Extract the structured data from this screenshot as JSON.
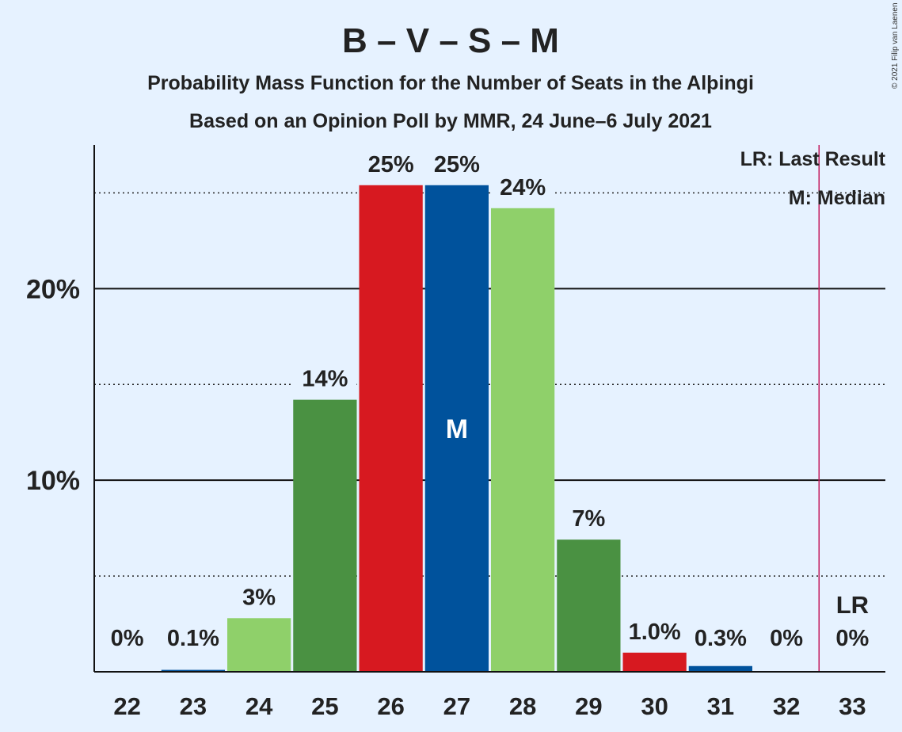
{
  "copyright": "© 2021 Filip van Laenen",
  "chart_data": {
    "type": "bar",
    "title": "B – V – S – M",
    "subtitle1": "Probability Mass Function for the Number of Seats in the Alþingi",
    "subtitle2": "Based on an Opinion Poll by MMR, 24 June–6 July 2021",
    "categories": [
      "22",
      "23",
      "24",
      "25",
      "26",
      "27",
      "28",
      "29",
      "30",
      "31",
      "32",
      "33"
    ],
    "values": [
      0,
      0.1,
      2.8,
      14.2,
      25.4,
      25.4,
      24.2,
      6.9,
      1.0,
      0.3,
      0,
      0
    ],
    "value_labels": [
      "0%",
      "0.1%",
      "3%",
      "14%",
      "25%",
      "25%",
      "24%",
      "7%",
      "1.0%",
      "0.3%",
      "0%",
      "0%"
    ],
    "colors": [
      "#D71920",
      "#00529C",
      "#8FD06A",
      "#4A9142",
      "#D71920",
      "#00529C",
      "#8FD06A",
      "#4A9142",
      "#D71920",
      "#00529C",
      "#8FD06A",
      "#4A9142"
    ],
    "ylim": [
      0,
      27.5
    ],
    "yticks_major": [
      10,
      20
    ],
    "ytick_labels": [
      "10%",
      "20%"
    ],
    "yticks_minor": [
      5,
      15,
      25
    ],
    "median_category": "27",
    "median_label": "M",
    "last_result_category": "33",
    "last_result_label": "LR",
    "legend": [
      "LR: Last Result",
      "M: Median"
    ],
    "legend_position": "top-right",
    "lr_line_color": "#C2185B"
  }
}
